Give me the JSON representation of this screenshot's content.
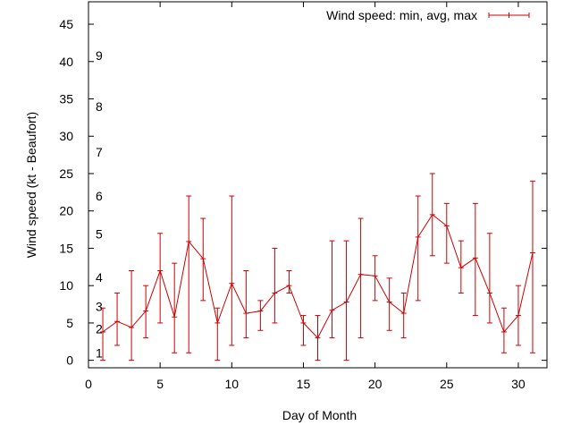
{
  "chart_data": {
    "type": "line",
    "title": "",
    "xlabel": "Day of Month",
    "ylabel": "Wind speed (kt - Beaufort)",
    "xlim": [
      0,
      32
    ],
    "ylim": [
      -1,
      48
    ],
    "x_ticks": [
      0,
      5,
      10,
      15,
      20,
      25,
      30
    ],
    "y_ticks": [
      0,
      5,
      10,
      15,
      20,
      25,
      30,
      35,
      40,
      45
    ],
    "grid": false,
    "legend_position": "top-right",
    "beaufort_labels": [
      {
        "label": "1",
        "y": 1
      },
      {
        "label": "2",
        "y": 4.2
      },
      {
        "label": "3",
        "y": 7.2
      },
      {
        "label": "4",
        "y": 11.1
      },
      {
        "label": "5",
        "y": 16.9
      },
      {
        "label": "6",
        "y": 22
      },
      {
        "label": "7",
        "y": 27.9
      },
      {
        "label": "8",
        "y": 34
      },
      {
        "label": "9",
        "y": 40.8
      }
    ],
    "series": [
      {
        "name": "Wind speed: min, avg, max",
        "color": "#cc0000",
        "x": [
          1,
          2,
          3,
          4,
          5,
          6,
          7,
          8,
          9,
          10,
          11,
          12,
          13,
          14,
          15,
          16,
          17,
          18,
          19,
          20,
          21,
          22,
          23,
          24,
          25,
          26,
          27,
          28,
          29,
          30,
          31
        ],
        "min": [
          0,
          2,
          0,
          3,
          5,
          1,
          1,
          8,
          0,
          2,
          3,
          4,
          5,
          9,
          2,
          0,
          3,
          0,
          3,
          8,
          4,
          3,
          8,
          14,
          13,
          9,
          6,
          5,
          1,
          2,
          1
        ],
        "avg": [
          3.8,
          5.2,
          4.4,
          6.6,
          12,
          5.8,
          15.9,
          13.6,
          5,
          10.3,
          6.3,
          6.6,
          9,
          10,
          5,
          3,
          6.7,
          7.8,
          11.5,
          11.3,
          7.8,
          6.3,
          16.5,
          19.5,
          18,
          12.4,
          13.7,
          9,
          3.8,
          6,
          14.4
        ],
        "max": [
          7,
          9,
          12,
          10,
          17,
          13,
          22,
          19,
          7,
          22,
          12,
          8,
          15,
          12,
          6,
          6,
          16,
          16,
          19,
          14,
          11,
          9,
          22,
          25,
          21,
          16,
          21,
          17,
          7,
          10,
          24
        ]
      }
    ]
  }
}
